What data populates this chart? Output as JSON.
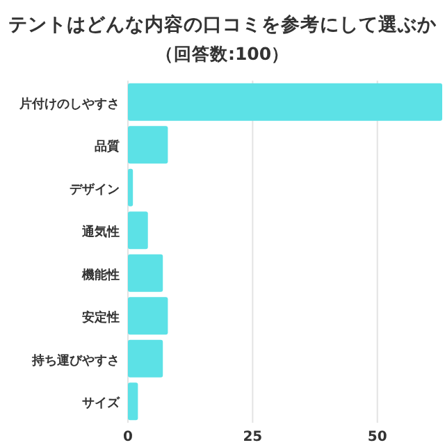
{
  "chart_data": {
    "type": "bar",
    "orientation": "horizontal",
    "title": "テントはどんな内容の口コミを参考にして選ぶか",
    "subtitle": "（回答数:100）",
    "categories": [
      "片付けのしやすさ",
      "品質",
      "デザイン",
      "通気性",
      "機能性",
      "安定性",
      "持ち運びやすさ",
      "サイズ"
    ],
    "values": [
      63,
      8,
      1,
      4,
      7,
      8,
      7,
      2
    ],
    "color": "#5ce1e6",
    "xlim": [
      0,
      63
    ],
    "xticks": [
      0,
      25,
      50
    ],
    "grid": "x"
  }
}
